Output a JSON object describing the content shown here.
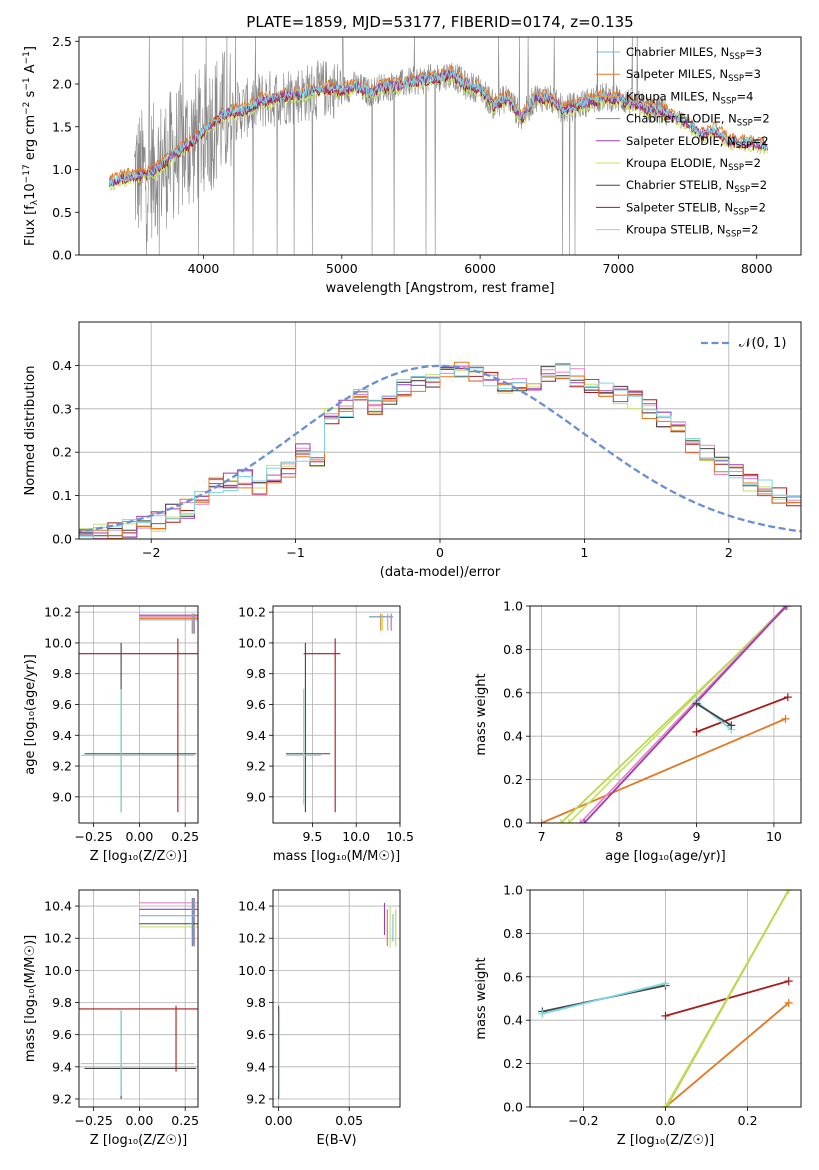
{
  "figure": {
    "title": "PLATE=1859, MJD=53177, FIBERID=0174, z=0.135"
  },
  "colors": {
    "chabrier_miles": "#7ab3ea",
    "salpeter_miles": "#e6761e",
    "kroupa_miles": "#e69d4a",
    "chabrier_elodie": "#888888",
    "salpeter_elodie": "#9a3fb2",
    "kroupa_elodie": "#c3e36a",
    "chabrier_stelib": "#454545",
    "salpeter_stelib": "#a61c1c",
    "kroupa_stelib": "#7fd8e0",
    "pink": "#e586c6",
    "green": "#b9d84e",
    "blue_line": "#6a8fd4"
  },
  "chart_data": [
    {
      "id": "spectrum",
      "type": "line",
      "title": "PLATE=1859, MJD=53177, FIBERID=0174, z=0.135",
      "xlabel": "wavelength [Angstrom, rest frame]",
      "ylabel_text": "Flux [f",
      "ylabel_sub": "λ",
      "ylabel_rest": "10",
      "ylabel_exp": "−17",
      "ylabel_tail": " erg cm",
      "ylabel_tail_exp": "−2",
      "ylabel_tail2": " s",
      "ylabel_tail2_exp": "−1",
      "ylabel_tail3": " A",
      "ylabel_tail3_exp": "−1",
      "ylabel_close": "]",
      "xlim": [
        3100,
        8320
      ],
      "ylim": [
        0,
        2.55
      ],
      "xticks": [
        4000,
        5000,
        6000,
        7000,
        8000
      ],
      "yticks": [
        0.0,
        0.5,
        1.0,
        1.5,
        2.0,
        2.5
      ],
      "xtick_labels": [
        "4000",
        "5000",
        "6000",
        "7000",
        "8000"
      ],
      "ytick_labels": [
        "0.0",
        "0.5",
        "1.0",
        "1.5",
        "2.0",
        "2.5"
      ],
      "legend": [
        {
          "pre": "Chabrier MILES, N",
          "sub": "SSP",
          "post": "=3",
          "color": "#7ab3ea"
        },
        {
          "pre": "Salpeter MILES, N",
          "sub": "SSP",
          "post": "=3",
          "color": "#e6761e"
        },
        {
          "pre": "Kroupa MILES, N",
          "sub": "SSP",
          "post": "=4",
          "color": "#e69d4a"
        },
        {
          "pre": "Chabrier ELODIE, N",
          "sub": "SSP",
          "post": "=2",
          "color": "#888888"
        },
        {
          "pre": "Salpeter ELODIE, N",
          "sub": "SSP",
          "post": "=2",
          "color": "#9a3fb2"
        },
        {
          "pre": "Kroupa ELODIE, N",
          "sub": "SSP",
          "post": "=2",
          "color": "#c3e36a"
        },
        {
          "pre": "Chabrier STELIB, N",
          "sub": "SSP",
          "post": "=2",
          "color": "#454545"
        },
        {
          "pre": "Salpeter STELIB, N",
          "sub": "SSP",
          "post": "=2",
          "color": "#a61c1c"
        },
        {
          "pre": "Kroupa STELIB, N",
          "sub": "SSP",
          "post": "=2",
          "color": "#7fd8e0"
        }
      ],
      "model_curve": {
        "x": [
          3320,
          3400,
          3500,
          3600,
          3700,
          3800,
          3900,
          4000,
          4100,
          4200,
          4300,
          4400,
          4500,
          4600,
          4700,
          4800,
          4900,
          5000,
          5100,
          5200,
          5300,
          5400,
          5500,
          5600,
          5700,
          5800,
          5900,
          6000,
          6100,
          6200,
          6300,
          6400,
          6500,
          6600,
          6700,
          6800,
          6900,
          7000,
          7100,
          7200,
          7300,
          7400,
          7500,
          7600,
          7700,
          7800,
          7900,
          8000,
          8080
        ],
        "y": [
          0.85,
          0.9,
          0.93,
          0.95,
          1.05,
          1.2,
          1.3,
          1.45,
          1.6,
          1.68,
          1.7,
          1.8,
          1.83,
          1.87,
          1.88,
          1.92,
          1.95,
          1.93,
          1.98,
          1.9,
          1.97,
          1.98,
          2.03,
          2.05,
          2.08,
          2.12,
          1.98,
          1.95,
          1.75,
          1.85,
          1.6,
          1.85,
          1.83,
          1.7,
          1.75,
          1.8,
          1.85,
          1.83,
          1.78,
          1.72,
          1.7,
          1.62,
          1.55,
          1.4,
          1.47,
          1.33,
          1.32,
          1.3,
          1.28
        ]
      },
      "data_band": {
        "x_min": 3500,
        "x_max": 7350
      }
    },
    {
      "id": "residual-hist",
      "type": "line",
      "xlabel": "(data-model)/error",
      "ylabel": "Normed distribution",
      "xlim": [
        -2.5,
        2.5
      ],
      "ylim": [
        0,
        0.5
      ],
      "xticks": [
        -2,
        -1,
        0,
        1,
        2
      ],
      "yticks": [
        0.0,
        0.1,
        0.2,
        0.3,
        0.4
      ],
      "xtick_labels": [
        "−2",
        "−1",
        "0",
        "1",
        "2"
      ],
      "ytick_labels": [
        "0.0",
        "0.1",
        "0.2",
        "0.3",
        "0.4"
      ],
      "legend": [
        {
          "pre": "𝒩(0, 1)",
          "color": "#6a8fd4"
        }
      ],
      "hist_bin_edges_start": -2.5,
      "hist_bin_width": 0.1,
      "hist_values": [
        0.01,
        0.012,
        0.02,
        0.025,
        0.03,
        0.04,
        0.06,
        0.07,
        0.1,
        0.12,
        0.13,
        0.14,
        0.12,
        0.15,
        0.16,
        0.2,
        0.19,
        0.28,
        0.3,
        0.33,
        0.3,
        0.32,
        0.35,
        0.36,
        0.36,
        0.38,
        0.39,
        0.38,
        0.37,
        0.35,
        0.36,
        0.34,
        0.38,
        0.39,
        0.37,
        0.36,
        0.34,
        0.33,
        0.32,
        0.3,
        0.28,
        0.25,
        0.22,
        0.2,
        0.17,
        0.15,
        0.13,
        0.12,
        0.1,
        0.08,
        0.05
      ]
    },
    {
      "id": "age-vs-Z",
      "type": "scatter",
      "xlabel": "Z [log₁₀(Z/Z☉)]",
      "ylabel": "age  [log₁₀(age/yr)]",
      "xlim": [
        -0.33,
        0.32
      ],
      "ylim": [
        8.83,
        10.24
      ],
      "xticks": [
        -0.25,
        0.0,
        0.25
      ],
      "yticks": [
        9.0,
        9.2,
        9.4,
        9.6,
        9.8,
        10.0,
        10.2
      ],
      "xtick_labels": [
        "−0.25",
        "0.00",
        "0.25"
      ],
      "ytick_labels": [
        "9.0",
        "9.2",
        "9.4",
        "9.6",
        "9.8",
        "10.0",
        "10.2"
      ]
    },
    {
      "id": "age-vs-mass",
      "type": "scatter",
      "xlabel": "mass [log₁₀(M/M☉)]",
      "xlim": [
        9.05,
        10.5
      ],
      "ylim": [
        8.83,
        10.24
      ],
      "xticks": [
        9.5,
        10.0,
        10.5
      ],
      "yticks": [
        9.0,
        9.2,
        9.4,
        9.6,
        9.8,
        10.0,
        10.2
      ],
      "xtick_labels": [
        "9.5",
        "10.0",
        "10.5"
      ],
      "ytick_labels": [
        "9.0",
        "9.2",
        "9.4",
        "9.6",
        "9.8",
        "10.0",
        "10.2"
      ]
    },
    {
      "id": "weight-vs-age",
      "type": "line",
      "xlabel": "age  [log₁₀(age/yr)]",
      "ylabel": "mass weight",
      "xlim": [
        6.85,
        10.35
      ],
      "ylim": [
        0,
        1.0
      ],
      "xticks": [
        7,
        8,
        9,
        10
      ],
      "yticks": [
        0.0,
        0.2,
        0.4,
        0.6,
        0.8,
        1.0
      ],
      "xtick_labels": [
        "7",
        "8",
        "9",
        "10"
      ],
      "ytick_labels": [
        "0.0",
        "0.2",
        "0.4",
        "0.6",
        "0.8",
        "1.0"
      ]
    },
    {
      "id": "mass-vs-Z",
      "type": "scatter",
      "xlabel": "Z [log₁₀(Z/Z☉)]",
      "ylabel": "mass [log₁₀(M/M☉)]",
      "xlim": [
        -0.33,
        0.32
      ],
      "ylim": [
        9.15,
        10.5
      ],
      "xticks": [
        -0.25,
        0.0,
        0.25
      ],
      "yticks": [
        9.2,
        9.4,
        9.6,
        9.8,
        10.0,
        10.2,
        10.4
      ],
      "xtick_labels": [
        "−0.25",
        "0.00",
        "0.25"
      ],
      "ytick_labels": [
        "9.2",
        "9.4",
        "9.6",
        "9.8",
        "10.0",
        "10.2",
        "10.4"
      ]
    },
    {
      "id": "mass-vs-EBV",
      "type": "scatter",
      "xlabel": "E(B-V)",
      "xlim": [
        -0.004,
        0.086
      ],
      "ylim": [
        9.15,
        10.5
      ],
      "xticks": [
        0.0,
        0.05
      ],
      "yticks": [
        9.2,
        9.4,
        9.6,
        9.8,
        10.0,
        10.2,
        10.4
      ],
      "xtick_labels": [
        "0.00",
        "0.05"
      ],
      "ytick_labels": [
        "9.2",
        "9.4",
        "9.6",
        "9.8",
        "10.0",
        "10.2",
        "10.4"
      ]
    },
    {
      "id": "weight-vs-Z",
      "type": "line",
      "xlabel": "Z [log₁₀(Z/Z☉)]",
      "ylabel": "mass weight",
      "xlim": [
        -0.33,
        0.33
      ],
      "ylim": [
        0,
        1.0
      ],
      "xticks": [
        -0.2,
        0.0,
        0.2
      ],
      "yticks": [
        0.0,
        0.2,
        0.4,
        0.6,
        0.8,
        1.0
      ],
      "xtick_labels": [
        "−0.2",
        "0.0",
        "0.2"
      ],
      "ytick_labels": [
        "0.0",
        "0.2",
        "0.4",
        "0.6",
        "0.8",
        "1.0"
      ]
    }
  ]
}
